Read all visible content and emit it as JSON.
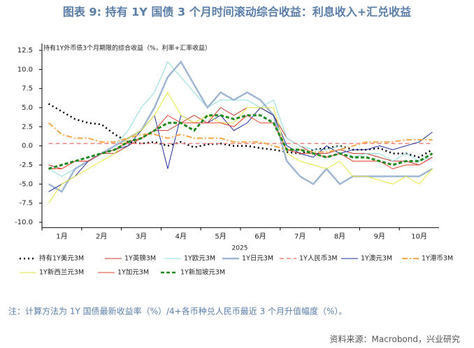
{
  "chart_data": {
    "type": "line",
    "title": "图表 9:  持有 1Y 国债 3 个月时间滚动综合收益：利息收入+汇兑收益",
    "subtitle": "持有1Y外币债3个月期限的综合收益（%，利率+汇率收益）",
    "x_label": "2025",
    "note": "注：计算方法为 1Y 国债最新收益率（%）/4+各币种兑人民币最近 3 个月升值幅度（%）。",
    "source": "资料来源：Macrobond，兴业研究",
    "categories": [
      null,
      "1月",
      null,
      null,
      "2月",
      null,
      null,
      "3月",
      null,
      null,
      "4月",
      null,
      null,
      "5月",
      null,
      null,
      "6月",
      null,
      null,
      "7月",
      null,
      null,
      "8月",
      null,
      null,
      "9月",
      null,
      null,
      "10月",
      null
    ],
    "ylim": [
      -10.7,
      13.4
    ],
    "yticks": [
      12.5,
      {
        "value": 10,
        "label": "10.0"
      },
      7.5,
      {
        "value": 5,
        "label": "5.0"
      },
      2.5,
      {
        "value": 0,
        "label": "0.0"
      },
      -2.5,
      {
        "value": -5,
        "label": "-5.0"
      },
      -7.5,
      {
        "value": -10,
        "label": "-10.0"
      }
    ],
    "series": [
      {
        "name": "持有1Y美元3M",
        "color": "#000000",
        "dash": "2,4",
        "width": 2.5,
        "values": [
          5.5,
          4.5,
          3.5,
          3,
          2.8,
          1.5,
          0.5,
          0.3,
          0.5,
          0,
          0.5,
          -0.2,
          0.2,
          0.3,
          0,
          0,
          -0.3,
          -0.5,
          -0.8,
          -1,
          -0.5,
          -0.3,
          0,
          -0.5,
          -0.5,
          -0.3,
          -1,
          -1,
          -1.5,
          -0.5
        ]
      },
      {
        "name": "1Y英镑3M",
        "color": "#c0392b",
        "dash": "",
        "width": 1,
        "values": [
          -2.5,
          -3,
          -2,
          -2,
          -1,
          -1,
          0,
          1,
          2,
          2,
          3,
          4,
          3,
          5,
          4,
          5,
          5,
          4,
          1,
          0,
          -1,
          -1,
          -0.5,
          -1,
          -1,
          -1.5,
          -2,
          -2,
          -2.5,
          -1.5
        ]
      },
      {
        "name": "1Y欧元3M",
        "color": "#8fdcdc",
        "dash": "",
        "width": 1,
        "values": [
          -3,
          -4,
          -3,
          -2,
          -1,
          0,
          2,
          5,
          7,
          11,
          9,
          7,
          5,
          6,
          6,
          6,
          5,
          6,
          1,
          0,
          -0.5,
          -0.5,
          0,
          -1.5,
          -1,
          -1,
          -2,
          -1,
          -2,
          -1.5
        ]
      },
      {
        "name": "1Y日元3M",
        "color": "#9fb7d4",
        "dash": "",
        "width": 2.5,
        "values": [
          -5,
          -6,
          -3,
          -2,
          -1,
          0,
          1,
          2,
          5,
          9,
          11,
          8,
          5,
          7,
          6,
          7,
          6,
          4,
          -2,
          -4,
          -5,
          -3,
          -5,
          -4,
          -4,
          -4,
          -4,
          -4,
          -4,
          -3
        ]
      },
      {
        "name": "1Y人民币3M",
        "color": "#f08080",
        "dash": "6,4",
        "width": 1.5,
        "values": [
          0.3,
          0.3,
          0.3,
          0.3,
          0.3,
          0.3,
          0.3,
          0.3,
          0.3,
          0.3,
          0.3,
          0.3,
          0.3,
          0.3,
          0.3,
          0.3,
          0.3,
          0.3,
          0.3,
          0.3,
          0.3,
          0.3,
          0.3,
          0.3,
          0.3,
          0.3,
          0.3,
          0.3,
          0.3,
          0.3
        ]
      },
      {
        "name": "1Y澳元3M",
        "color": "#1f2d9c",
        "dash": "",
        "width": 1,
        "values": [
          -6,
          -5,
          -4,
          -2,
          -1,
          -0.5,
          0,
          2,
          4,
          -3,
          4,
          3,
          3,
          4,
          2,
          3,
          5,
          4,
          0,
          -1,
          -1.5,
          0,
          -1,
          -0.5,
          -0.5,
          0,
          -0.5,
          0,
          0.5,
          1.8
        ]
      },
      {
        "name": "1Y港币3M",
        "color": "#f5a84b",
        "dash": "8,3,2,3",
        "width": 2,
        "values": [
          3,
          1.5,
          1,
          1,
          0.5,
          0.5,
          1,
          1.5,
          1.5,
          1,
          1.5,
          1,
          1,
          1,
          0.5,
          0.5,
          0.5,
          0,
          -0.5,
          -0.5,
          -0.8,
          -0.8,
          -0.5,
          0,
          0.5,
          0.5,
          0.5,
          0.8,
          0.8,
          0.8
        ]
      },
      {
        "name": "1Y新西兰元3M",
        "color": "#e6e63c",
        "dash": "",
        "width": 1,
        "values": [
          -7.5,
          -5,
          -4,
          -3,
          -2,
          -1,
          1,
          2,
          4,
          7,
          4,
          3,
          4,
          3,
          3,
          5,
          5,
          5,
          -1,
          -2,
          -2.5,
          -3,
          -2,
          -4,
          -4,
          -4.5,
          -5,
          -4,
          -5,
          -3
        ]
      },
      {
        "name": "1Y加元3M",
        "color": "#e8412e",
        "dash": "",
        "width": 1,
        "values": [
          -3,
          -3,
          -2,
          -2,
          -1,
          -0.5,
          0.5,
          1,
          2,
          4,
          3,
          3,
          3,
          3,
          2.5,
          4,
          3,
          3,
          -0.5,
          -1,
          -1,
          -1.5,
          -1,
          -2,
          -2,
          -2,
          -3,
          -2.5,
          -2.5,
          -1.5
        ]
      },
      {
        "name": "1Y新加坡元3M",
        "color": "#1e8a1e",
        "dash": "5,3",
        "width": 3,
        "values": [
          -3,
          -2.5,
          -2,
          -1.5,
          -1,
          -0.5,
          0.5,
          1,
          2,
          3,
          3,
          2,
          4,
          4,
          3.5,
          4,
          4,
          3,
          -0.5,
          -0.5,
          -1,
          -1.5,
          -1,
          -1.5,
          -1.5,
          -2,
          -2.5,
          -2,
          -2,
          -1
        ]
      }
    ]
  }
}
